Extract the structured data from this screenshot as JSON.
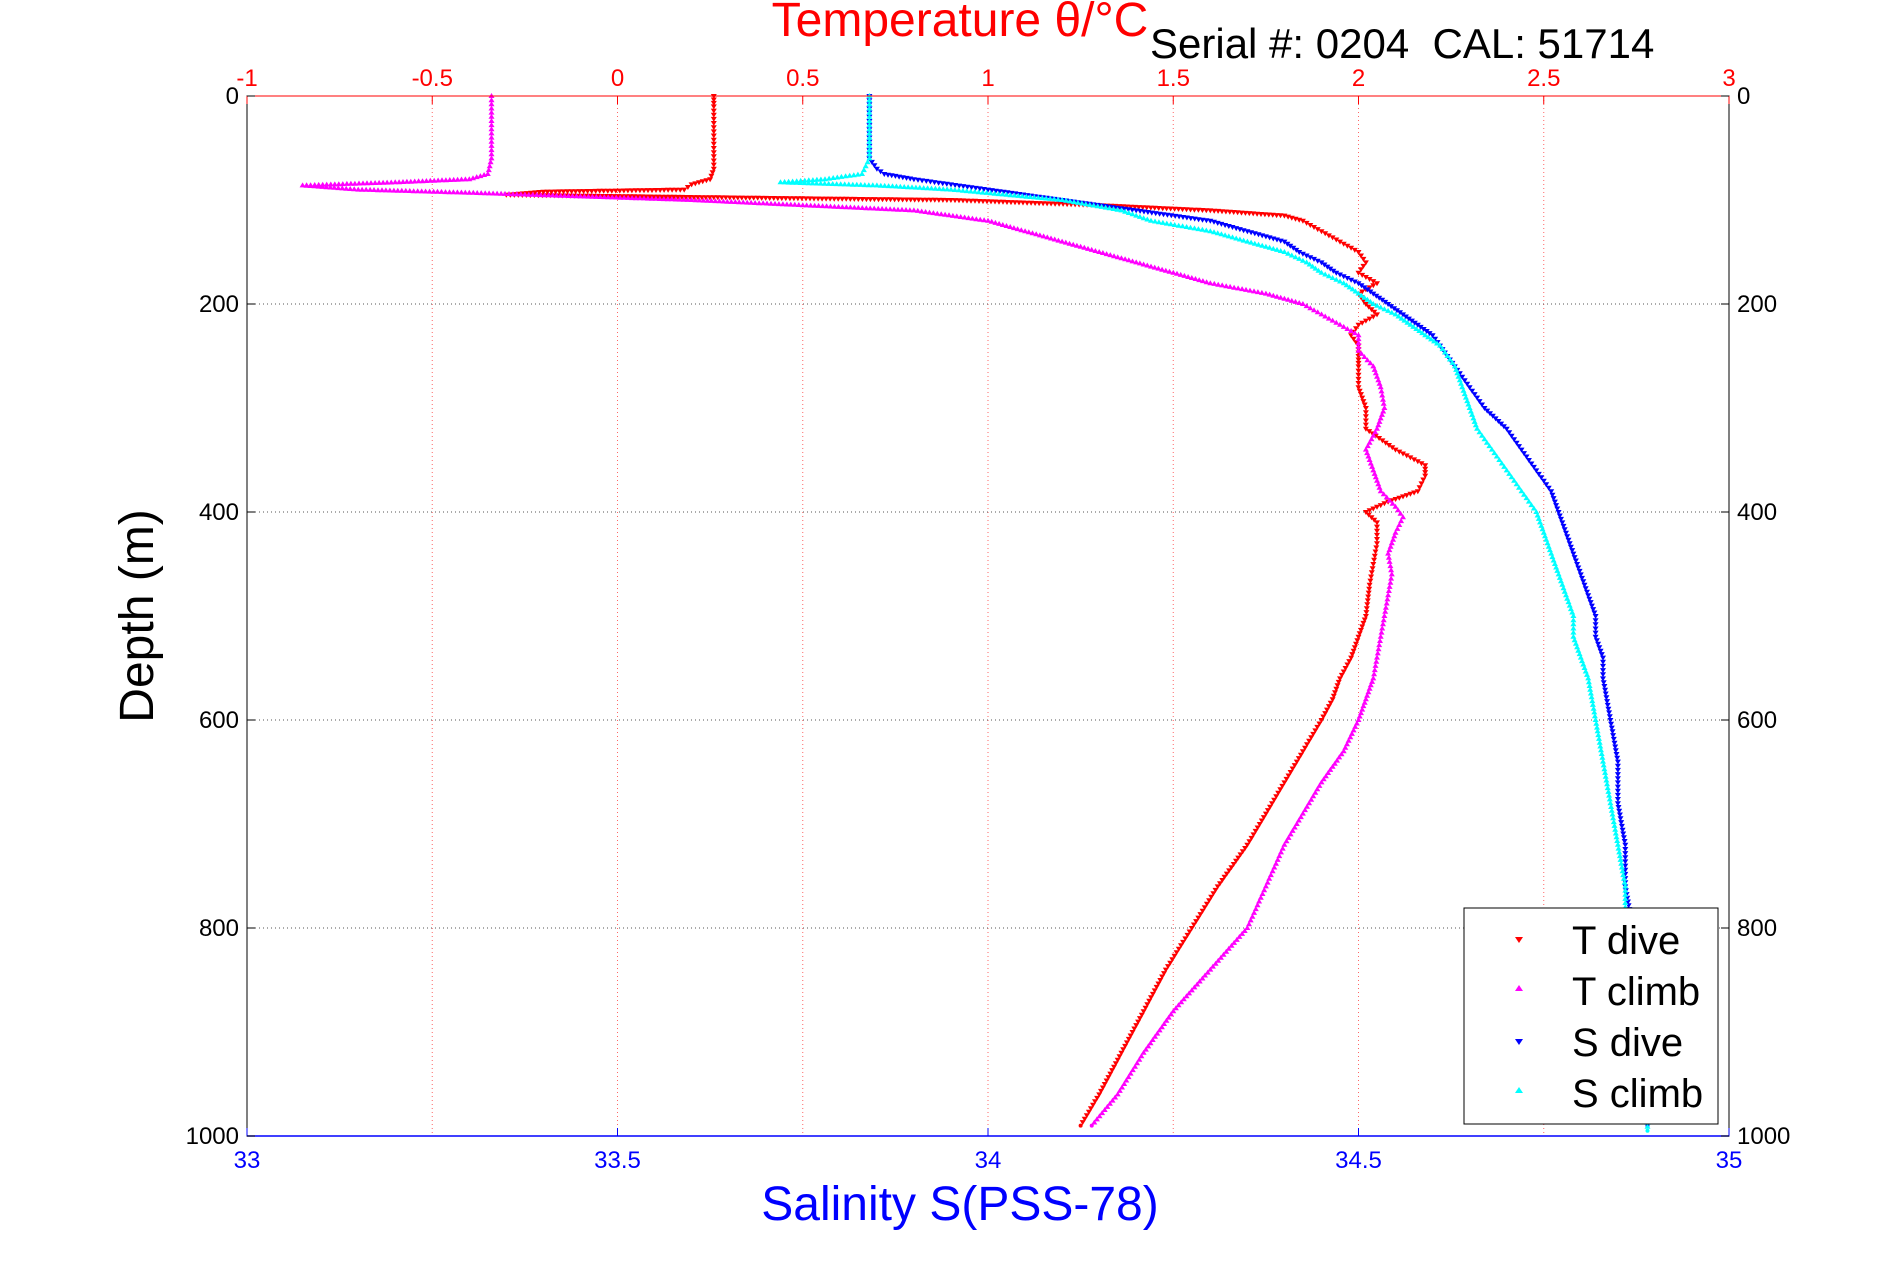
{
  "chart_data": {
    "type": "scatter",
    "title": "Temperature θ/°C",
    "annotation": "Serial #: 0204  CAL: 51714",
    "xlabel": "Salinity S(PSS-78)",
    "ylabel": "Depth (m)",
    "x_bottom": {
      "label": "Salinity S(PSS-78)",
      "lim": [
        33,
        35
      ],
      "ticks": [
        33,
        33.5,
        34,
        34.5,
        35
      ],
      "tick_labels": [
        "33",
        "33.5",
        "34",
        "34.5",
        "35"
      ],
      "color": "#0000ff"
    },
    "x_top": {
      "label": "Temperature θ/°C",
      "lim": [
        -1,
        3
      ],
      "ticks": [
        -1,
        -0.5,
        0,
        0.5,
        1,
        1.5,
        2,
        2.5,
        3
      ],
      "tick_labels": [
        "-1",
        "-0.5",
        "0",
        "0.5",
        "1",
        "1.5",
        "2",
        "2.5",
        "3"
      ],
      "color": "#ff0000"
    },
    "y": {
      "label": "Depth (m)",
      "lim": [
        0,
        1000
      ],
      "reversed": true,
      "ticks": [
        0,
        200,
        400,
        600,
        800,
        1000
      ],
      "tick_labels": [
        "0",
        "200",
        "400",
        "600",
        "800",
        "1000"
      ]
    },
    "grid": true,
    "legend_position": "bottom-right",
    "series": [
      {
        "name": "T dive",
        "axis": "top",
        "color": "#ff0000",
        "marker": "triangle-down",
        "points": [
          [
            0.26,
            0
          ],
          [
            0.26,
            10
          ],
          [
            0.26,
            30
          ],
          [
            0.26,
            50
          ],
          [
            0.26,
            70
          ],
          [
            0.25,
            80
          ],
          [
            0.2,
            85
          ],
          [
            0.18,
            90
          ],
          [
            -0.2,
            92
          ],
          [
            -0.3,
            95
          ],
          [
            0.4,
            98
          ],
          [
            0.9,
            100
          ],
          [
            1.3,
            105
          ],
          [
            1.6,
            110
          ],
          [
            1.8,
            115
          ],
          [
            1.85,
            120
          ],
          [
            1.9,
            130
          ],
          [
            1.95,
            140
          ],
          [
            2.0,
            150
          ],
          [
            2.02,
            160
          ],
          [
            2.0,
            170
          ],
          [
            2.05,
            180
          ],
          [
            2.0,
            190
          ],
          [
            2.02,
            200
          ],
          [
            2.05,
            210
          ],
          [
            2.0,
            220
          ],
          [
            1.98,
            230
          ],
          [
            2.0,
            240
          ],
          [
            2.0,
            250
          ],
          [
            2.0,
            260
          ],
          [
            2.0,
            280
          ],
          [
            2.02,
            300
          ],
          [
            2.02,
            320
          ],
          [
            2.1,
            340
          ],
          [
            2.18,
            355
          ],
          [
            2.18,
            365
          ],
          [
            2.16,
            380
          ],
          [
            2.08,
            390
          ],
          [
            2.02,
            400
          ],
          [
            2.05,
            410
          ],
          [
            2.05,
            430
          ],
          [
            2.04,
            450
          ],
          [
            2.03,
            470
          ],
          [
            2.02,
            500
          ],
          [
            2.0,
            520
          ],
          [
            1.98,
            540
          ],
          [
            1.95,
            560
          ],
          [
            1.93,
            580
          ],
          [
            1.9,
            600
          ],
          [
            1.85,
            630
          ],
          [
            1.8,
            660
          ],
          [
            1.75,
            690
          ],
          [
            1.7,
            720
          ],
          [
            1.62,
            760
          ],
          [
            1.55,
            800
          ],
          [
            1.48,
            840
          ],
          [
            1.42,
            880
          ],
          [
            1.36,
            920
          ],
          [
            1.3,
            960
          ],
          [
            1.25,
            990
          ]
        ]
      },
      {
        "name": "T climb",
        "axis": "top",
        "color": "#ff00ff",
        "marker": "triangle-up",
        "points": [
          [
            -0.34,
            0
          ],
          [
            -0.34,
            20
          ],
          [
            -0.34,
            40
          ],
          [
            -0.34,
            60
          ],
          [
            -0.35,
            75
          ],
          [
            -0.4,
            80
          ],
          [
            -0.6,
            83
          ],
          [
            -0.85,
            86
          ],
          [
            -0.7,
            90
          ],
          [
            -0.4,
            93
          ],
          [
            0.2,
            100
          ],
          [
            0.8,
            110
          ],
          [
            1.0,
            120
          ],
          [
            1.1,
            130
          ],
          [
            1.2,
            140
          ],
          [
            1.3,
            150
          ],
          [
            1.4,
            160
          ],
          [
            1.5,
            170
          ],
          [
            1.6,
            180
          ],
          [
            1.75,
            190
          ],
          [
            1.85,
            200
          ],
          [
            1.9,
            210
          ],
          [
            1.95,
            220
          ],
          [
            2.0,
            230
          ],
          [
            2.0,
            245
          ],
          [
            2.04,
            260
          ],
          [
            2.06,
            280
          ],
          [
            2.07,
            300
          ],
          [
            2.05,
            320
          ],
          [
            2.02,
            340
          ],
          [
            2.04,
            360
          ],
          [
            2.06,
            380
          ],
          [
            2.1,
            395
          ],
          [
            2.12,
            405
          ],
          [
            2.1,
            420
          ],
          [
            2.08,
            440
          ],
          [
            2.09,
            460
          ],
          [
            2.08,
            480
          ],
          [
            2.07,
            500
          ],
          [
            2.06,
            520
          ],
          [
            2.05,
            540
          ],
          [
            2.04,
            560
          ],
          [
            2.02,
            580
          ],
          [
            2.0,
            600
          ],
          [
            1.96,
            630
          ],
          [
            1.9,
            660
          ],
          [
            1.85,
            690
          ],
          [
            1.8,
            720
          ],
          [
            1.75,
            760
          ],
          [
            1.7,
            800
          ],
          [
            1.6,
            840
          ],
          [
            1.5,
            880
          ],
          [
            1.42,
            920
          ],
          [
            1.35,
            960
          ],
          [
            1.28,
            990
          ]
        ]
      },
      {
        "name": "S dive",
        "axis": "bottom",
        "color": "#0000ff",
        "marker": "triangle-down",
        "points": [
          [
            33.84,
            0
          ],
          [
            33.84,
            20
          ],
          [
            33.84,
            40
          ],
          [
            33.84,
            60
          ],
          [
            33.85,
            70
          ],
          [
            33.86,
            75
          ],
          [
            33.9,
            80
          ],
          [
            33.95,
            85
          ],
          [
            34.0,
            90
          ],
          [
            34.1,
            100
          ],
          [
            34.2,
            110
          ],
          [
            34.3,
            120
          ],
          [
            34.35,
            130
          ],
          [
            34.4,
            140
          ],
          [
            34.42,
            150
          ],
          [
            34.45,
            160
          ],
          [
            34.47,
            170
          ],
          [
            34.5,
            180
          ],
          [
            34.52,
            190
          ],
          [
            34.54,
            200
          ],
          [
            34.56,
            210
          ],
          [
            34.58,
            220
          ],
          [
            34.6,
            230
          ],
          [
            34.61,
            240
          ],
          [
            34.62,
            250
          ],
          [
            34.63,
            260
          ],
          [
            34.65,
            280
          ],
          [
            34.67,
            300
          ],
          [
            34.7,
            320
          ],
          [
            34.72,
            340
          ],
          [
            34.74,
            360
          ],
          [
            34.76,
            380
          ],
          [
            34.77,
            400
          ],
          [
            34.78,
            420
          ],
          [
            34.79,
            440
          ],
          [
            34.8,
            460
          ],
          [
            34.81,
            480
          ],
          [
            34.82,
            500
          ],
          [
            34.82,
            520
          ],
          [
            34.83,
            540
          ],
          [
            34.83,
            560
          ],
          [
            34.84,
            600
          ],
          [
            34.85,
            640
          ],
          [
            34.85,
            680
          ],
          [
            34.86,
            720
          ],
          [
            34.86,
            760
          ],
          [
            34.87,
            800
          ],
          [
            34.87,
            840
          ],
          [
            34.88,
            880
          ],
          [
            34.88,
            920
          ],
          [
            34.89,
            960
          ],
          [
            34.89,
            990
          ]
        ]
      },
      {
        "name": "S climb",
        "axis": "bottom",
        "color": "#00ffff",
        "marker": "triangle-up",
        "points": [
          [
            33.84,
            0
          ],
          [
            33.84,
            20
          ],
          [
            33.84,
            40
          ],
          [
            33.84,
            60
          ],
          [
            33.83,
            75
          ],
          [
            33.78,
            80
          ],
          [
            33.72,
            83
          ],
          [
            33.85,
            86
          ],
          [
            33.95,
            90
          ],
          [
            34.1,
            100
          ],
          [
            34.18,
            110
          ],
          [
            34.22,
            120
          ],
          [
            34.3,
            130
          ],
          [
            34.35,
            140
          ],
          [
            34.4,
            150
          ],
          [
            34.43,
            160
          ],
          [
            34.45,
            170
          ],
          [
            34.48,
            180
          ],
          [
            34.5,
            190
          ],
          [
            34.52,
            200
          ],
          [
            34.55,
            210
          ],
          [
            34.57,
            220
          ],
          [
            34.59,
            230
          ],
          [
            34.61,
            240
          ],
          [
            34.62,
            250
          ],
          [
            34.63,
            260
          ],
          [
            34.64,
            280
          ],
          [
            34.65,
            300
          ],
          [
            34.66,
            320
          ],
          [
            34.68,
            340
          ],
          [
            34.7,
            360
          ],
          [
            34.72,
            380
          ],
          [
            34.74,
            400
          ],
          [
            34.75,
            420
          ],
          [
            34.76,
            440
          ],
          [
            34.77,
            460
          ],
          [
            34.78,
            480
          ],
          [
            34.79,
            500
          ],
          [
            34.79,
            520
          ],
          [
            34.8,
            540
          ],
          [
            34.81,
            560
          ],
          [
            34.82,
            600
          ],
          [
            34.83,
            640
          ],
          [
            34.84,
            680
          ],
          [
            34.85,
            720
          ],
          [
            34.86,
            760
          ],
          [
            34.86,
            800
          ],
          [
            34.87,
            840
          ],
          [
            34.88,
            880
          ],
          [
            34.88,
            920
          ],
          [
            34.89,
            960
          ],
          [
            34.89,
            995
          ]
        ]
      }
    ]
  }
}
